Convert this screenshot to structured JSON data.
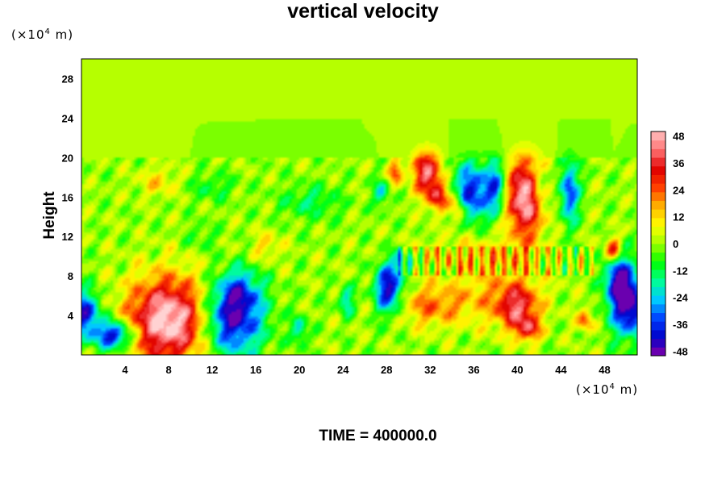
{
  "chart_data": {
    "type": "heatmap",
    "title": "vertical velocity",
    "ylabel": "Height",
    "x_unit_text": "(×10",
    "x_unit_exp": "4",
    "x_unit_suffix": " m)",
    "y_unit_text": "(×10",
    "y_unit_exp": "4",
    "y_unit_suffix": " m)",
    "footer": "TIME = 400000.0",
    "xlim": [
      0,
      51
    ],
    "ylim": [
      0,
      30
    ],
    "x_ticks": [
      "4",
      "8",
      "12",
      "16",
      "20",
      "24",
      "28",
      "32",
      "36",
      "40",
      "44",
      "48"
    ],
    "y_ticks": [
      "4",
      "8",
      "12",
      "16",
      "20",
      "24",
      "28"
    ],
    "colorbar": {
      "range": [
        -50,
        50
      ],
      "tick_labels": [
        "48",
        "36",
        "24",
        "12",
        "0",
        "-12",
        "-24",
        "-36",
        "-48"
      ],
      "colors": [
        "#8a00a8",
        "#0000c8",
        "#0040ff",
        "#00c8ff",
        "#00ff96",
        "#00ff00",
        "#a0ff00",
        "#ffff00",
        "#ffb400",
        "#ff4000",
        "#e00000",
        "#ff7070",
        "#ffc0c0"
      ]
    },
    "features": [
      {
        "x": 8.0,
        "y": 3.5,
        "sx": 2.6,
        "sy": 3.0,
        "value": 55
      },
      {
        "x": 13.8,
        "y": 3.5,
        "sx": 2.0,
        "sy": 2.6,
        "value": -45
      },
      {
        "x": 14.5,
        "y": 6.5,
        "sx": 1.4,
        "sy": 1.6,
        "value": -22
      },
      {
        "x": 3.0,
        "y": 2.0,
        "sx": 1.3,
        "sy": 1.0,
        "value": -45
      },
      {
        "x": 0.3,
        "y": 4.2,
        "sx": 1.0,
        "sy": 1.6,
        "value": -40
      },
      {
        "x": 20.0,
        "y": 2.5,
        "sx": 0.5,
        "sy": 1.0,
        "value": -22
      },
      {
        "x": 24.3,
        "y": 5.5,
        "sx": 0.5,
        "sy": 1.0,
        "value": -22
      },
      {
        "x": 28.2,
        "y": 6.8,
        "sx": 0.9,
        "sy": 1.8,
        "value": -46
      },
      {
        "x": 29.5,
        "y": 9.5,
        "sx": 0.6,
        "sy": 0.8,
        "value": -22
      },
      {
        "x": 32.0,
        "y": 5.0,
        "sx": 2.2,
        "sy": 1.5,
        "value": 20
      },
      {
        "x": 40.0,
        "y": 4.8,
        "sx": 1.3,
        "sy": 1.6,
        "value": 32
      },
      {
        "x": 41.0,
        "y": 2.6,
        "sx": 0.8,
        "sy": 0.9,
        "value": 28
      },
      {
        "x": 38.0,
        "y": 6.0,
        "sx": 3.0,
        "sy": 2.0,
        "value": 14
      },
      {
        "x": 31.7,
        "y": 18.5,
        "sx": 0.9,
        "sy": 1.6,
        "value": 42
      },
      {
        "x": 32.8,
        "y": 16.0,
        "sx": 0.7,
        "sy": 1.0,
        "value": 32
      },
      {
        "x": 35.7,
        "y": 16.5,
        "sx": 1.2,
        "sy": 2.0,
        "value": -40
      },
      {
        "x": 34.5,
        "y": 15.0,
        "sx": 0.5,
        "sy": 1.2,
        "value": 26
      },
      {
        "x": 40.7,
        "y": 16.0,
        "sx": 1.2,
        "sy": 2.8,
        "value": 52
      },
      {
        "x": 38.0,
        "y": 17.0,
        "sx": 0.7,
        "sy": 2.0,
        "value": -30
      },
      {
        "x": 42.0,
        "y": 17.0,
        "sx": 0.5,
        "sy": 1.5,
        "value": -22
      },
      {
        "x": 44.8,
        "y": 16.5,
        "sx": 0.6,
        "sy": 2.2,
        "value": -36
      },
      {
        "x": 28.8,
        "y": 18.5,
        "sx": 0.5,
        "sy": 0.8,
        "value": 26
      },
      {
        "x": 27.5,
        "y": 16.5,
        "sx": 0.5,
        "sy": 1.0,
        "value": -20
      },
      {
        "x": 50.3,
        "y": 5.0,
        "sx": 1.2,
        "sy": 2.2,
        "value": -50
      },
      {
        "x": 49.2,
        "y": 8.0,
        "sx": 0.8,
        "sy": 1.8,
        "value": -40
      },
      {
        "x": 48.8,
        "y": 10.5,
        "sx": 0.5,
        "sy": 1.0,
        "value": 38
      },
      {
        "x": 46.2,
        "y": 3.5,
        "sx": 0.5,
        "sy": 0.8,
        "value": 24
      },
      {
        "x": 21.0,
        "y": 15.5,
        "sx": 2.0,
        "sy": 1.2,
        "value": -13
      },
      {
        "x": 12.0,
        "y": 17.0,
        "sx": 1.5,
        "sy": 1.0,
        "value": -10
      },
      {
        "x": 17.0,
        "y": 11.0,
        "sx": 1.0,
        "sy": 1.0,
        "value": 12
      },
      {
        "x": 7.0,
        "y": 17.5,
        "sx": 1.3,
        "sy": 1.0,
        "value": 12
      },
      {
        "x": 11.0,
        "y": 12.0,
        "sx": 1.0,
        "sy": 1.0,
        "value": -8
      },
      {
        "x": 36.5,
        "y": 10.0,
        "sx": 4.0,
        "sy": 1.3,
        "value": 14
      }
    ]
  }
}
